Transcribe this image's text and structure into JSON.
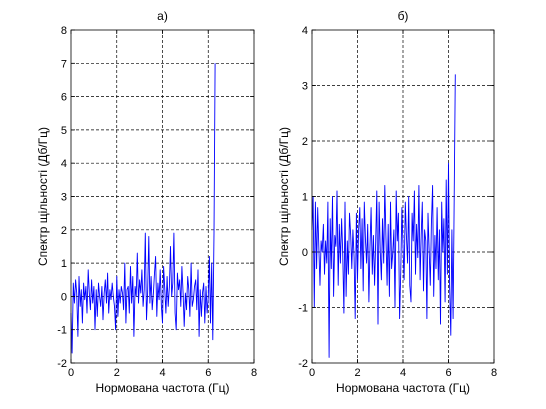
{
  "chart_data": [
    {
      "type": "line",
      "title": "а)",
      "xlabel": "Нормована частота (Гц)",
      "ylabel": "Спектр щільності (Дб/Гц)",
      "xlim": [
        0,
        8
      ],
      "ylim": [
        -2,
        8
      ],
      "xticks": [
        "0",
        "2",
        "4",
        "6",
        "8"
      ],
      "yticks": [
        "-2",
        "-1",
        "0",
        "1",
        "2",
        "3",
        "4",
        "5",
        "6",
        "7",
        "8"
      ],
      "grid": true,
      "series": [
        {
          "color": "#0000ff",
          "x": [
            0.0,
            0.05,
            0.1,
            0.15,
            0.2,
            0.25,
            0.3,
            0.35,
            0.4,
            0.45,
            0.5,
            0.55,
            0.6,
            0.65,
            0.7,
            0.75,
            0.8,
            0.85,
            0.9,
            0.95,
            1.0,
            1.05,
            1.1,
            1.15,
            1.2,
            1.25,
            1.3,
            1.35,
            1.4,
            1.45,
            1.5,
            1.55,
            1.6,
            1.65,
            1.7,
            1.75,
            1.8,
            1.85,
            1.9,
            1.95,
            2.0,
            2.05,
            2.1,
            2.15,
            2.2,
            2.25,
            2.3,
            2.35,
            2.4,
            2.45,
            2.5,
            2.55,
            2.6,
            2.65,
            2.7,
            2.75,
            2.8,
            2.85,
            2.9,
            2.95,
            3.0,
            3.05,
            3.1,
            3.15,
            3.2,
            3.25,
            3.3,
            3.35,
            3.4,
            3.45,
            3.5,
            3.55,
            3.6,
            3.65,
            3.7,
            3.75,
            3.8,
            3.85,
            3.9,
            3.95,
            4.0,
            4.05,
            4.1,
            4.15,
            4.2,
            4.25,
            4.3,
            4.35,
            4.4,
            4.45,
            4.5,
            4.55,
            4.6,
            4.65,
            4.7,
            4.75,
            4.8,
            4.85,
            4.9,
            4.95,
            5.0,
            5.05,
            5.1,
            5.15,
            5.2,
            5.25,
            5.3,
            5.35,
            5.4,
            5.45,
            5.5,
            5.55,
            5.6,
            5.65,
            5.7,
            5.75,
            5.8,
            5.85,
            5.9,
            5.95,
            6.0,
            6.05,
            6.1,
            6.15,
            6.2,
            6.25,
            6.3
          ],
          "y": [
            -0.5,
            -1.7,
            0.4,
            -0.2,
            0.5,
            0.1,
            -1.2,
            0.6,
            -0.3,
            0.2,
            -0.8,
            0.4,
            -0.1,
            0.3,
            -0.5,
            0.8,
            0.1,
            -0.4,
            0.5,
            -0.2,
            0.3,
            -1.0,
            0.2,
            -0.6,
            0.4,
            0.0,
            -0.3,
            0.3,
            -0.7,
            0.1,
            0.5,
            -0.2,
            0.7,
            -0.5,
            0.2,
            -0.1,
            0.4,
            0.0,
            -0.3,
            -1.0,
            0.6,
            -0.6,
            0.2,
            -0.2,
            0.3,
            0.1,
            -0.4,
            1.0,
            -0.8,
            0.2,
            0.3,
            -0.5,
            0.9,
            -0.2,
            0.6,
            -1.2,
            0.3,
            0.0,
            1.3,
            -0.2,
            0.5,
            0.1,
            0.8,
            -0.3,
            0.2,
            1.9,
            -0.7,
            0.1,
            1.8,
            -0.2,
            0.6,
            -0.4,
            0.1,
            0.7,
            1.2,
            -0.6,
            0.4,
            -0.1,
            0.8,
            -0.3,
            -0.8,
            0.9,
            0.2,
            -0.5,
            0.6,
            -0.3,
            0.3,
            1.5,
            0.0,
            0.4,
            1.9,
            -0.5,
            -1.0,
            0.7,
            0.2,
            0.5,
            -0.3,
            0.9,
            0.1,
            -0.9,
            0.1,
            -0.4,
            0.6,
            0.2,
            -0.6,
            1.0,
            -0.3,
            -0.1,
            0.3,
            0.5,
            -0.4,
            0.8,
            -1.2,
            0.2,
            -0.6,
            0.1,
            0.4,
            -0.8,
            0.3,
            -0.5,
            0.0,
            1.2,
            -0.8,
            1.0,
            -1.3,
            1.9,
            7.0
          ]
        }
      ]
    },
    {
      "type": "line",
      "title": "б)",
      "xlabel": "Нормована частота (Гц)",
      "ylabel": "Спектр щільності (Дб/Гц)",
      "xlim": [
        0,
        8
      ],
      "ylim": [
        -2,
        4
      ],
      "xticks": [
        "0",
        "2",
        "4",
        "6",
        "8"
      ],
      "yticks": [
        "-2",
        "-1",
        "0",
        "1",
        "2",
        "3",
        "4"
      ],
      "grid": true,
      "series": [
        {
          "color": "#0000ff",
          "x": [
            0.0,
            0.05,
            0.1,
            0.15,
            0.2,
            0.25,
            0.3,
            0.35,
            0.4,
            0.45,
            0.5,
            0.55,
            0.6,
            0.65,
            0.7,
            0.75,
            0.8,
            0.85,
            0.9,
            0.95,
            1.0,
            1.05,
            1.1,
            1.15,
            1.2,
            1.25,
            1.3,
            1.35,
            1.4,
            1.45,
            1.5,
            1.55,
            1.6,
            1.65,
            1.7,
            1.75,
            1.8,
            1.85,
            1.9,
            1.95,
            2.0,
            2.05,
            2.1,
            2.15,
            2.2,
            2.25,
            2.3,
            2.35,
            2.4,
            2.45,
            2.5,
            2.55,
            2.6,
            2.65,
            2.7,
            2.75,
            2.8,
            2.85,
            2.9,
            2.95,
            3.0,
            3.05,
            3.1,
            3.15,
            3.2,
            3.25,
            3.3,
            3.35,
            3.4,
            3.45,
            3.5,
            3.55,
            3.6,
            3.65,
            3.7,
            3.75,
            3.8,
            3.85,
            3.9,
            3.95,
            4.0,
            4.05,
            4.1,
            4.15,
            4.2,
            4.25,
            4.3,
            4.35,
            4.4,
            4.45,
            4.5,
            4.55,
            4.6,
            4.65,
            4.7,
            4.75,
            4.8,
            4.85,
            4.9,
            4.95,
            5.0,
            5.05,
            5.1,
            5.15,
            5.2,
            5.25,
            5.3,
            5.35,
            5.4,
            5.45,
            5.5,
            5.55,
            5.6,
            5.65,
            5.7,
            5.75,
            5.8,
            5.85,
            5.9,
            5.95,
            6.0,
            6.05,
            6.1,
            6.15,
            6.2,
            6.25,
            6.3
          ],
          "y": [
            0.4,
            1.0,
            -1.0,
            0.9,
            -0.3,
            0.8,
            0.1,
            -0.6,
            0.2,
            0.0,
            0.5,
            -0.4,
            0.2,
            -0.2,
            0.9,
            -1.9,
            0.6,
            -0.3,
            1.0,
            -0.8,
            0.3,
            0.1,
            1.1,
            -0.6,
            0.5,
            -0.2,
            0.6,
            0.0,
            -1.1,
            0.9,
            -0.8,
            0.2,
            -0.4,
            0.7,
            0.3,
            -0.3,
            0.4,
            -0.1,
            -1.2,
            0.7,
            -0.5,
            0.4,
            0.8,
            -0.3,
            0.6,
            -0.7,
            0.9,
            0.2,
            -0.2,
            0.5,
            -0.9,
            0.1,
            0.8,
            -0.4,
            0.3,
            -0.6,
            0.2,
            1.1,
            -1.3,
            0.9,
            0.0,
            -0.5,
            0.6,
            -0.2,
            1.2,
            0.3,
            -0.6,
            0.5,
            -0.8,
            0.9,
            -0.3,
            0.0,
            0.4,
            -1.0,
            1.1,
            0.2,
            0.7,
            -1.2,
            -0.4,
            0.8,
            0.1,
            -0.5,
            0.9,
            0.3,
            -0.2,
            1.0,
            -0.6,
            -0.9,
            0.7,
            0.2,
            1.1,
            -0.4,
            0.5,
            -0.1,
            1.2,
            -0.5,
            0.3,
            0.9,
            -0.7,
            0.4,
            0.2,
            -1.2,
            0.7,
            0.0,
            -0.6,
            0.5,
            1.2,
            -0.8,
            0.3,
            -0.3,
            0.8,
            -0.5,
            0.4,
            -1.3,
            0.9,
            0.0,
            0.6,
            -0.9,
            1.3,
            -0.4,
            1.6,
            -0.6,
            -1.5,
            0.4,
            -1.2,
            1.0,
            3.2
          ]
        }
      ]
    }
  ]
}
